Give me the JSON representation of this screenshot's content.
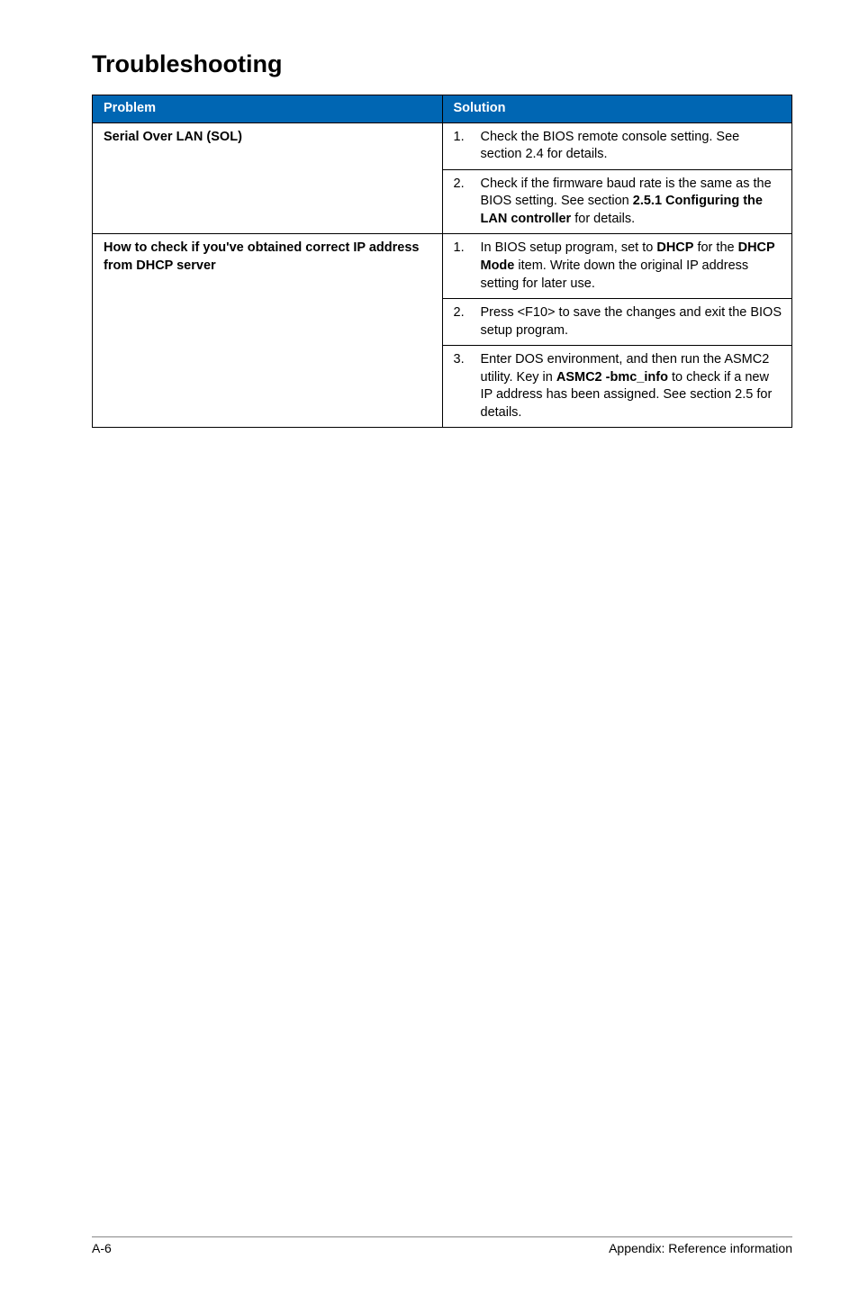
{
  "heading": "Troubleshooting",
  "table": {
    "headers": {
      "problem": "Problem",
      "solution": "Solution"
    },
    "rows": [
      {
        "problem": "Serial Over LAN (SOL)",
        "solutions": [
          {
            "num": "1.",
            "parts": [
              {
                "t": "Check the BIOS remote console setting. See section 2.4 for details.",
                "b": false
              }
            ]
          },
          {
            "num": "2.",
            "parts": [
              {
                "t": "Check if the firmware baud rate is the same as the BIOS setting. See section ",
                "b": false
              },
              {
                "t": "2.5.1 Configuring the LAN controller",
                "b": true
              },
              {
                "t": " for details.",
                "b": false
              }
            ]
          }
        ]
      },
      {
        "problem": "How to check if you've obtained correct IP address from DHCP server",
        "solutions": [
          {
            "num": "1.",
            "parts": [
              {
                "t": "In BIOS setup program, set to ",
                "b": false
              },
              {
                "t": "DHCP",
                "b": true
              },
              {
                "t": " for the ",
                "b": false
              },
              {
                "t": "DHCP Mode",
                "b": true
              },
              {
                "t": " item. Write down the original IP address setting for later use.",
                "b": false
              }
            ]
          },
          {
            "num": "2.",
            "parts": [
              {
                "t": "Press <F10> to save the changes and exit the BIOS setup program.",
                "b": false
              }
            ]
          },
          {
            "num": "3.",
            "parts": [
              {
                "t": "Enter DOS environment, and then run the ASMC2 utility. Key in ",
                "b": false
              },
              {
                "t": "ASMC2 -bmc_info",
                "b": true
              },
              {
                "t": " to check if a new IP address has been assigned. See section 2.5 for details.",
                "b": false
              }
            ]
          }
        ]
      }
    ]
  },
  "footer": {
    "left": "A-6",
    "right": "Appendix: Reference information"
  }
}
